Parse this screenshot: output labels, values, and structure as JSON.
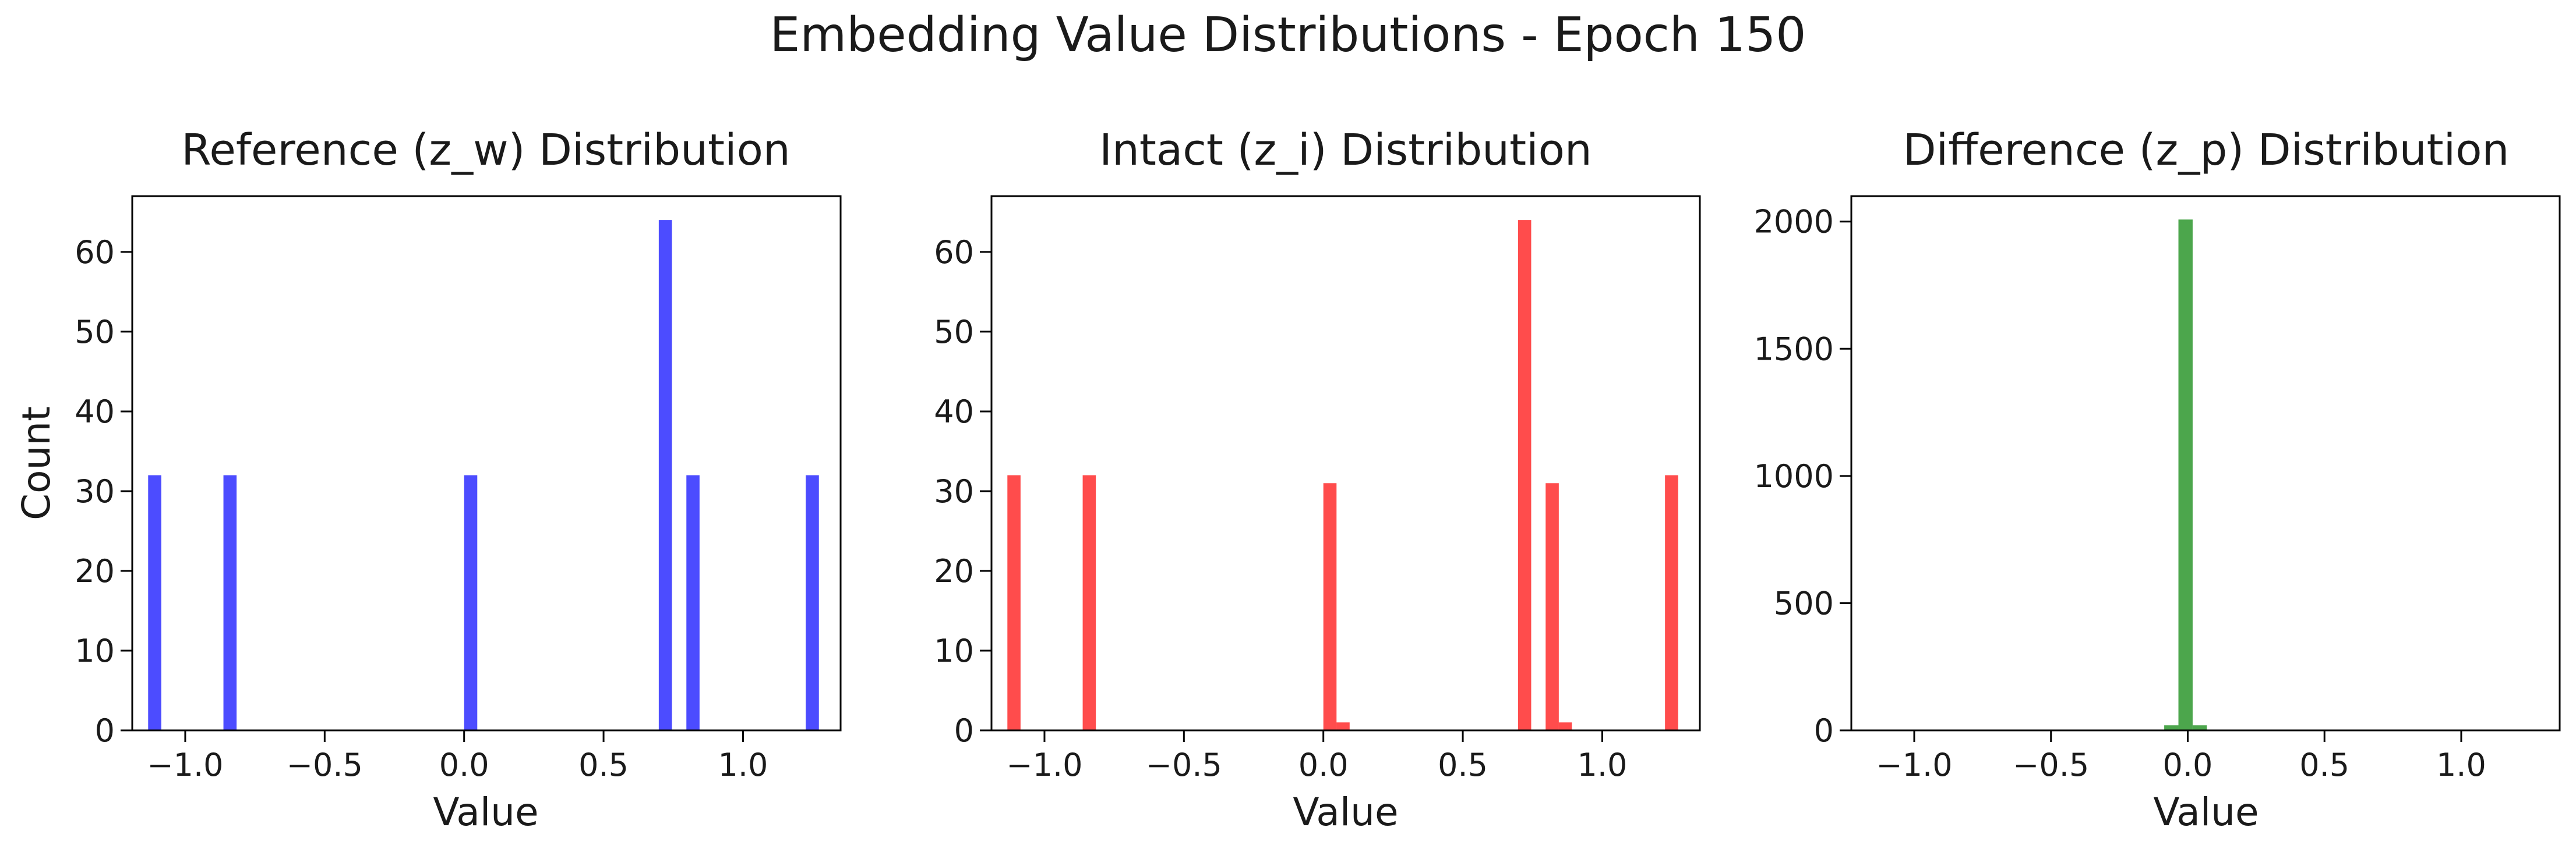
{
  "figure": {
    "suptitle": "Embedding Value Distributions - Epoch 150"
  },
  "chart_data": [
    {
      "type": "bar",
      "title": "Reference (z_w) Distribution",
      "xlabel": "Value",
      "ylabel": "Count",
      "color": "#0000ff",
      "xlim": [
        -1.19,
        1.35
      ],
      "ylim": [
        0,
        67
      ],
      "xticks": [
        -1.0,
        -0.5,
        0.0,
        0.5,
        1.0
      ],
      "xtick_labels": [
        "−1.0",
        "−0.5",
        "0.0",
        "0.5",
        "1.0"
      ],
      "yticks": [
        0,
        10,
        20,
        30,
        40,
        50,
        60
      ],
      "ytick_labels": [
        "0",
        "10",
        "20",
        "30",
        "40",
        "50",
        "60"
      ],
      "bin_width": 0.0472,
      "bins": [
        {
          "x0": -1.133,
          "count": 32
        },
        {
          "x0": -0.863,
          "count": 32
        },
        {
          "x0": 0.0,
          "count": 32
        },
        {
          "x0": 0.698,
          "count": 64
        },
        {
          "x0": 0.797,
          "count": 32
        },
        {
          "x0": 1.225,
          "count": 32
        }
      ]
    },
    {
      "type": "bar",
      "title": "Intact (z_i) Distribution",
      "xlabel": "Value",
      "ylabel": "",
      "color": "#ff0000",
      "xlim": [
        -1.19,
        1.35
      ],
      "ylim": [
        0,
        67
      ],
      "xticks": [
        -1.0,
        -0.5,
        0.0,
        0.5,
        1.0
      ],
      "xtick_labels": [
        "−1.0",
        "−0.5",
        "0.0",
        "0.5",
        "1.0"
      ],
      "yticks": [
        0,
        10,
        20,
        30,
        40,
        50,
        60
      ],
      "ytick_labels": [
        "0",
        "10",
        "20",
        "30",
        "40",
        "50",
        "60"
      ],
      "bin_width": 0.0472,
      "bins": [
        {
          "x0": -1.133,
          "count": 32
        },
        {
          "x0": -0.863,
          "count": 32
        },
        {
          "x0": 0.0,
          "count": 31
        },
        {
          "x0": 0.047,
          "count": 1
        },
        {
          "x0": 0.698,
          "count": 64
        },
        {
          "x0": 0.797,
          "count": 31
        },
        {
          "x0": 0.844,
          "count": 1
        },
        {
          "x0": 1.225,
          "count": 32
        }
      ]
    },
    {
      "type": "bar",
      "title": "Difference (z_p) Distribution",
      "xlabel": "Value",
      "ylabel": "",
      "color": "#008000",
      "xlim": [
        -1.23,
        1.36
      ],
      "ylim": [
        0,
        2100
      ],
      "xticks": [
        -1.0,
        -0.5,
        0.0,
        0.5,
        1.0
      ],
      "xtick_labels": [
        "−1.0",
        "−0.5",
        "0.0",
        "0.5",
        "1.0"
      ],
      "yticks": [
        0,
        500,
        1000,
        1500,
        2000
      ],
      "ytick_labels": [
        "0",
        "500",
        "1000",
        "1500",
        "2000"
      ],
      "bin_width": 0.052,
      "bins": [
        {
          "x0": -0.086,
          "count": 20
        },
        {
          "x0": -0.034,
          "count": 2008
        },
        {
          "x0": 0.018,
          "count": 20
        }
      ]
    }
  ]
}
